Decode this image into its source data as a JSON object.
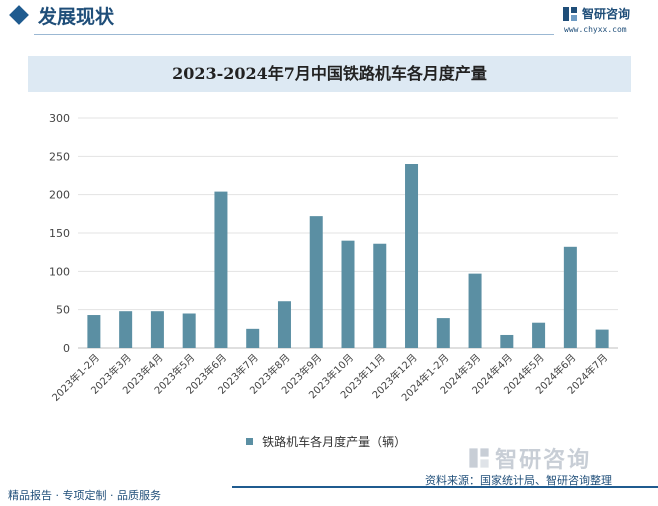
{
  "header": {
    "title": "发展现状"
  },
  "brand": {
    "name": "智研咨询",
    "url": "www.chyxx.com"
  },
  "chart_data": {
    "type": "bar",
    "title": "2023-2024年7月中国铁路机车各月度产量",
    "categories": [
      "2023年1-2月",
      "2023年3月",
      "2023年4月",
      "2023年5月",
      "2023年6月",
      "2023年7月",
      "2023年8月",
      "2023年9月",
      "2023年10月",
      "2023年11月",
      "2023年12月",
      "2024年1-2月",
      "2024年3月",
      "2024年4月",
      "2024年5月",
      "2024年6月",
      "2024年7月"
    ],
    "series": [
      {
        "name": "铁路机车各月度产量（辆）",
        "values": [
          43,
          48,
          48,
          45,
          204,
          25,
          61,
          172,
          140,
          136,
          240,
          39,
          97,
          17,
          33,
          132,
          24
        ]
      }
    ],
    "ylim": [
      0,
      300
    ],
    "yticks": [
      0,
      50,
      100,
      150,
      200,
      250,
      300
    ],
    "grid": true,
    "legend_position": "bottom",
    "bar_color": "#5b8fa3"
  },
  "source": {
    "text": "资料来源：国家统计局、智研咨询整理"
  },
  "footer": {
    "text": "精品报告 · 专项定制 · 品质服务"
  }
}
